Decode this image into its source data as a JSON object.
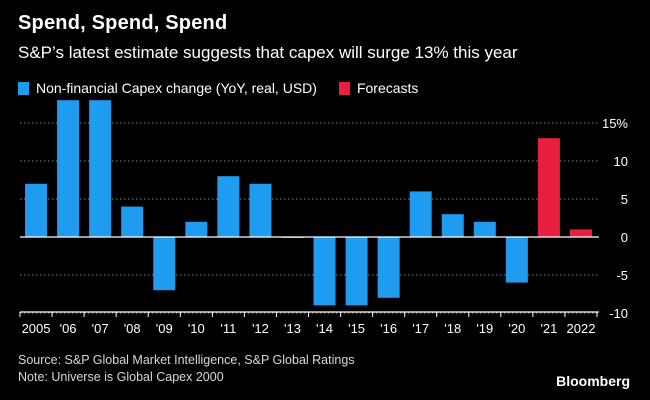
{
  "title": "Spend, Spend, Spend",
  "subtitle": "S&P’s latest estimate suggests that capex will surge 13% this year",
  "source": "Source: S&P Global Market Intelligence, S&P Global Ratings",
  "note": "Note: Universe is Global Capex 2000",
  "brand": "Bloomberg",
  "colors": {
    "actual": "#1f9bf0",
    "forecast": "#e8203f",
    "grid": "#8a8a8a",
    "axis": "#ffffff",
    "text": "#ffffff"
  },
  "legend": [
    {
      "label": "Non-financial Capex change (YoY, real, USD)",
      "color": "#1f9bf0"
    },
    {
      "label": "Forecasts",
      "color": "#e8203f"
    }
  ],
  "chart_data": {
    "type": "bar",
    "title": "Spend, Spend, Spend",
    "subtitle": "S&P’s latest estimate suggests that capex will surge 13% this year",
    "categories": [
      "2005",
      "'06",
      "'07",
      "'08",
      "'09",
      "'10",
      "'11",
      "'12",
      "'13",
      "'14",
      "'15",
      "'16",
      "'17",
      "'18",
      "'19",
      "'20",
      "'21",
      "2022"
    ],
    "series": [
      {
        "name": "Non-financial Capex change (YoY, real, USD)",
        "values": [
          7,
          18,
          18,
          4,
          -7,
          2,
          8,
          7,
          0,
          -9,
          -9,
          -8,
          6,
          3,
          2,
          -6,
          null,
          null
        ]
      },
      {
        "name": "Forecasts",
        "values": [
          null,
          null,
          null,
          null,
          null,
          null,
          null,
          null,
          null,
          null,
          null,
          null,
          null,
          null,
          null,
          null,
          13,
          1
        ]
      }
    ],
    "yticks": [
      {
        "value": 15,
        "label": "15%"
      },
      {
        "value": 10,
        "label": "10"
      },
      {
        "value": 5,
        "label": "5"
      },
      {
        "value": 0,
        "label": "0"
      },
      {
        "value": -5,
        "label": "-5"
      },
      {
        "value": -10,
        "label": "-10"
      }
    ],
    "ylim": [
      -11,
      15.5
    ],
    "grid": true,
    "y_axis_position": "right",
    "legend_position": "top-left",
    "xlabel": "",
    "ylabel": ""
  }
}
